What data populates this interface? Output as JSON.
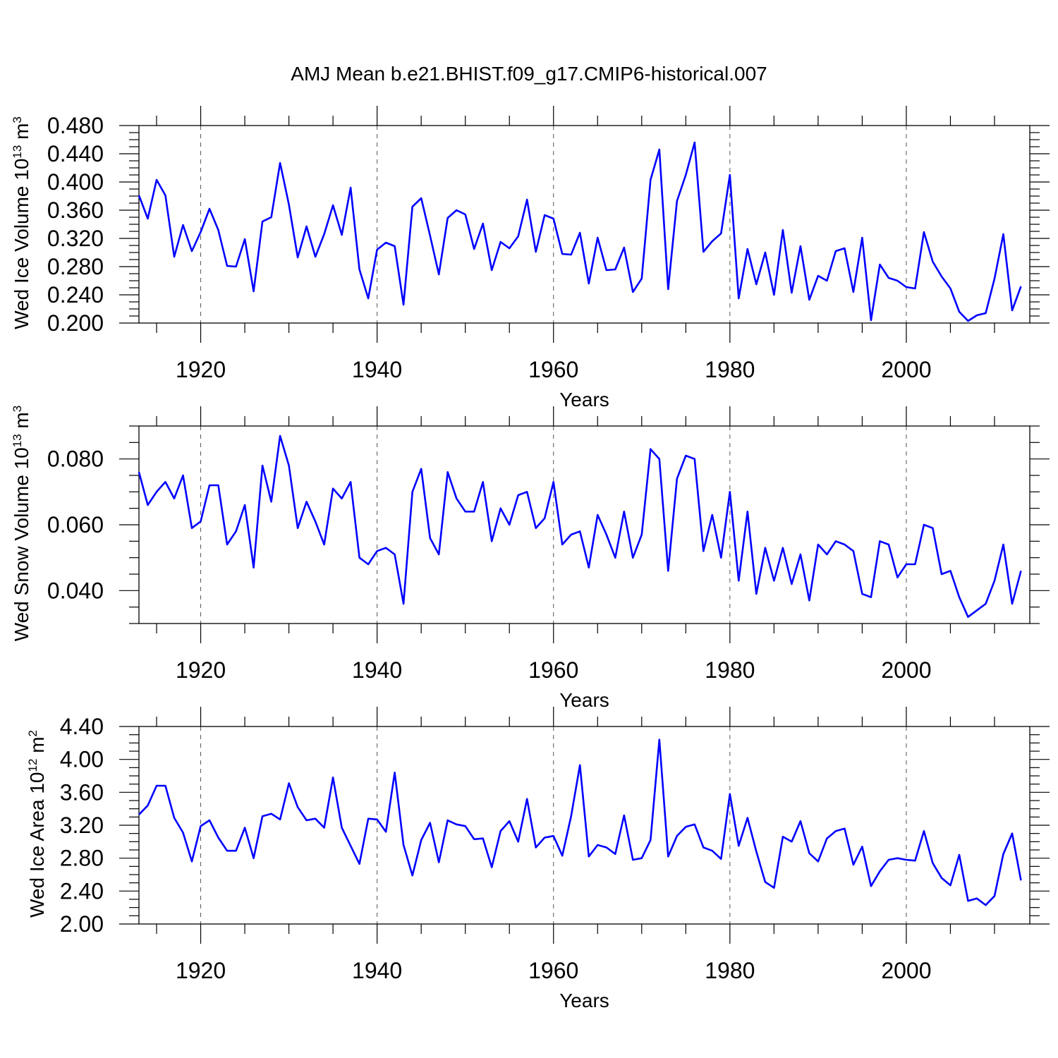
{
  "title": "AMJ Mean b.e21.BHIST.f09_g17.CMIP6-historical.007",
  "colors": {
    "line": "#0000ff",
    "axis": "#000000",
    "grid": "#555555"
  },
  "chart_data": [
    {
      "type": "line",
      "xlabel": "Years",
      "ylabel": {
        "text": "Wed Ice Volume 10",
        "exp": "13",
        "unit": " m",
        "unit_exp": "3"
      },
      "xlim": [
        1913,
        2014
      ],
      "ylim": [
        0.2,
        0.48
      ],
      "yticks": [
        "0.200",
        "0.240",
        "0.280",
        "0.320",
        "0.360",
        "0.400",
        "0.440",
        "0.480"
      ],
      "yticks_values": [
        0.2,
        0.24,
        0.28,
        0.32,
        0.36,
        0.4,
        0.44,
        0.48
      ],
      "xticks": [
        "1920",
        "1940",
        "1960",
        "1980",
        "2000"
      ],
      "xticks_values": [
        1920,
        1940,
        1960,
        1980,
        2000
      ],
      "grid": "vertical dashed at major x ticks",
      "x_start": 1913,
      "values": [
        0.381,
        0.348,
        0.403,
        0.381,
        0.294,
        0.339,
        0.302,
        0.329,
        0.362,
        0.332,
        0.281,
        0.28,
        0.319,
        0.245,
        0.344,
        0.35,
        0.427,
        0.368,
        0.293,
        0.337,
        0.294,
        0.326,
        0.367,
        0.325,
        0.392,
        0.276,
        0.235,
        0.304,
        0.314,
        0.309,
        0.226,
        0.365,
        0.377,
        0.324,
        0.269,
        0.349,
        0.36,
        0.354,
        0.305,
        0.341,
        0.275,
        0.315,
        0.306,
        0.323,
        0.375,
        0.301,
        0.353,
        0.348,
        0.298,
        0.297,
        0.328,
        0.256,
        0.321,
        0.275,
        0.276,
        0.307,
        0.244,
        0.263,
        0.403,
        0.446,
        0.248,
        0.373,
        0.41,
        0.456,
        0.301,
        0.316,
        0.327,
        0.41,
        0.235,
        0.305,
        0.255,
        0.3,
        0.24,
        0.332,
        0.243,
        0.309,
        0.233,
        0.267,
        0.26,
        0.302,
        0.306,
        0.244,
        0.321,
        0.204,
        0.283,
        0.264,
        0.26,
        0.251,
        0.249,
        0.329,
        0.287,
        0.266,
        0.249,
        0.216,
        0.203,
        0.211,
        0.214,
        0.263,
        0.326,
        0.218,
        0.252
      ]
    },
    {
      "type": "line",
      "xlabel": "Years",
      "ylabel": {
        "text": "Wed Snow Volume 10",
        "exp": "13",
        "unit": " m",
        "unit_exp": "3"
      },
      "xlim": [
        1913,
        2014
      ],
      "ylim": [
        0.03,
        0.09
      ],
      "yticks": [
        "0.040",
        "0.060",
        "0.080"
      ],
      "yticks_values": [
        0.04,
        0.06,
        0.08
      ],
      "xticks": [
        "1920",
        "1940",
        "1960",
        "1980",
        "2000"
      ],
      "xticks_values": [
        1920,
        1940,
        1960,
        1980,
        2000
      ],
      "grid": "vertical dashed at major x ticks",
      "x_start": 1913,
      "values": [
        0.076,
        0.066,
        0.07,
        0.073,
        0.068,
        0.075,
        0.059,
        0.061,
        0.072,
        0.072,
        0.054,
        0.058,
        0.066,
        0.047,
        0.078,
        0.067,
        0.087,
        0.078,
        0.059,
        0.067,
        0.061,
        0.054,
        0.071,
        0.068,
        0.073,
        0.05,
        0.048,
        0.052,
        0.053,
        0.051,
        0.036,
        0.07,
        0.077,
        0.056,
        0.051,
        0.076,
        0.068,
        0.064,
        0.064,
        0.073,
        0.055,
        0.065,
        0.06,
        0.069,
        0.07,
        0.059,
        0.062,
        0.073,
        0.054,
        0.057,
        0.058,
        0.047,
        0.063,
        0.057,
        0.05,
        0.064,
        0.05,
        0.057,
        0.083,
        0.08,
        0.046,
        0.074,
        0.081,
        0.08,
        0.052,
        0.063,
        0.05,
        0.07,
        0.043,
        0.064,
        0.039,
        0.053,
        0.043,
        0.053,
        0.042,
        0.051,
        0.037,
        0.054,
        0.051,
        0.055,
        0.054,
        0.052,
        0.039,
        0.038,
        0.055,
        0.054,
        0.044,
        0.048,
        0.048,
        0.06,
        0.059,
        0.045,
        0.046,
        0.038,
        0.032,
        0.034,
        0.036,
        0.043,
        0.054,
        0.036,
        0.046
      ]
    },
    {
      "type": "line",
      "xlabel": "Years",
      "ylabel": {
        "text": "Wed Ice Area 10",
        "exp": "12",
        "unit": " m",
        "unit_exp": "2"
      },
      "xlim": [
        1913,
        2014
      ],
      "ylim": [
        2.0,
        4.4
      ],
      "yticks": [
        "2.00",
        "2.40",
        "2.80",
        "3.20",
        "3.60",
        "4.00",
        "4.40"
      ],
      "yticks_values": [
        2.0,
        2.4,
        2.8,
        3.2,
        3.6,
        4.0,
        4.4
      ],
      "xticks": [
        "1920",
        "1940",
        "1960",
        "1980",
        "2000"
      ],
      "xticks_values": [
        1920,
        1940,
        1960,
        1980,
        2000
      ],
      "grid": "vertical dashed at major x ticks",
      "x_start": 1913,
      "values": [
        3.33,
        3.44,
        3.68,
        3.68,
        3.29,
        3.11,
        2.76,
        3.19,
        3.26,
        3.05,
        2.89,
        2.89,
        3.17,
        2.8,
        3.31,
        3.34,
        3.27,
        3.71,
        3.42,
        3.26,
        3.28,
        3.17,
        3.78,
        3.17,
        2.95,
        2.73,
        3.28,
        3.27,
        3.12,
        3.84,
        2.96,
        2.59,
        3.02,
        3.23,
        2.75,
        3.26,
        3.21,
        3.19,
        3.03,
        3.04,
        2.69,
        3.13,
        3.25,
        3.0,
        3.52,
        2.93,
        3.05,
        3.07,
        2.83,
        3.31,
        3.93,
        2.82,
        2.96,
        2.93,
        2.85,
        3.32,
        2.78,
        2.8,
        3.02,
        4.24,
        2.82,
        3.07,
        3.18,
        3.21,
        2.93,
        2.89,
        2.79,
        3.58,
        2.95,
        3.29,
        2.88,
        2.51,
        2.44,
        3.06,
        3.0,
        3.25,
        2.86,
        2.76,
        3.04,
        3.13,
        3.16,
        2.72,
        2.94,
        2.46,
        2.64,
        2.78,
        2.8,
        2.78,
        2.77,
        3.13,
        2.74,
        2.56,
        2.47,
        2.84,
        2.28,
        2.31,
        2.23,
        2.34,
        2.85,
        3.1,
        2.53
      ]
    }
  ]
}
